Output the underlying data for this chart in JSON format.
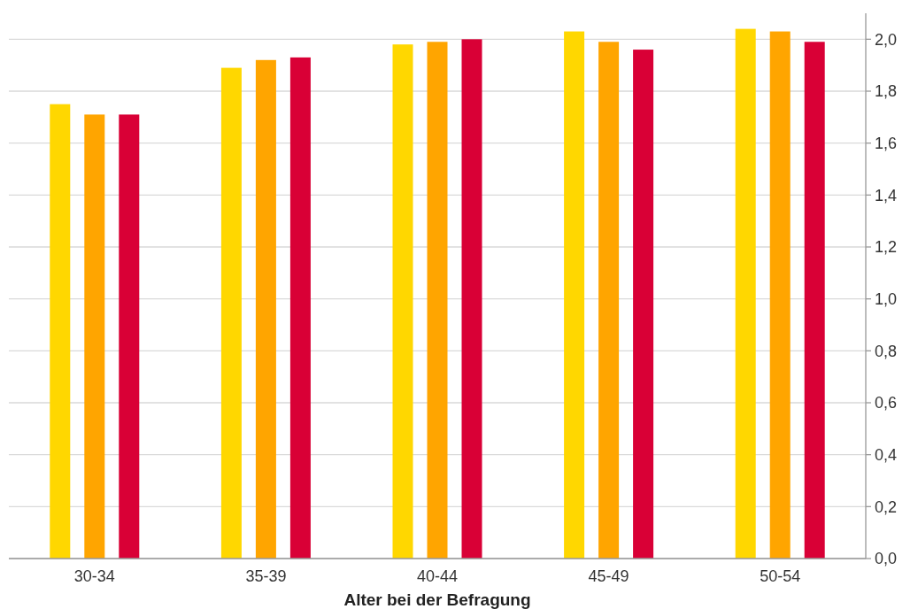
{
  "chart_data": {
    "type": "bar",
    "xlabel": "Alter bei der Befragung",
    "categories": [
      "30-34",
      "35-39",
      "40-44",
      "45-49",
      "50-54"
    ],
    "series": [
      {
        "color": "#ffd700",
        "values": [
          1.75,
          1.89,
          1.98,
          2.03,
          2.04
        ]
      },
      {
        "color": "#ffa500",
        "values": [
          1.71,
          1.92,
          1.99,
          1.99,
          2.03
        ]
      },
      {
        "color": "#d90036",
        "values": [
          1.71,
          1.93,
          2.0,
          1.96,
          1.99
        ]
      }
    ],
    "ylim": [
      0,
      2.1
    ],
    "yticks": [
      {
        "value": 0,
        "label": "0,0"
      },
      {
        "value": 0.2,
        "label": "0,2"
      },
      {
        "value": 0.4,
        "label": "0,4"
      },
      {
        "value": 0.6,
        "label": "0,6"
      },
      {
        "value": 0.8,
        "label": "0,8"
      },
      {
        "value": 1,
        "label": "1,0"
      },
      {
        "value": 1.2,
        "label": "1,2"
      },
      {
        "value": 1.4,
        "label": "1,4"
      },
      {
        "value": 1.6,
        "label": "1,6"
      },
      {
        "value": 1.8,
        "label": "1,8"
      },
      {
        "value": 2,
        "label": "2,0"
      }
    ],
    "grid": "y"
  }
}
